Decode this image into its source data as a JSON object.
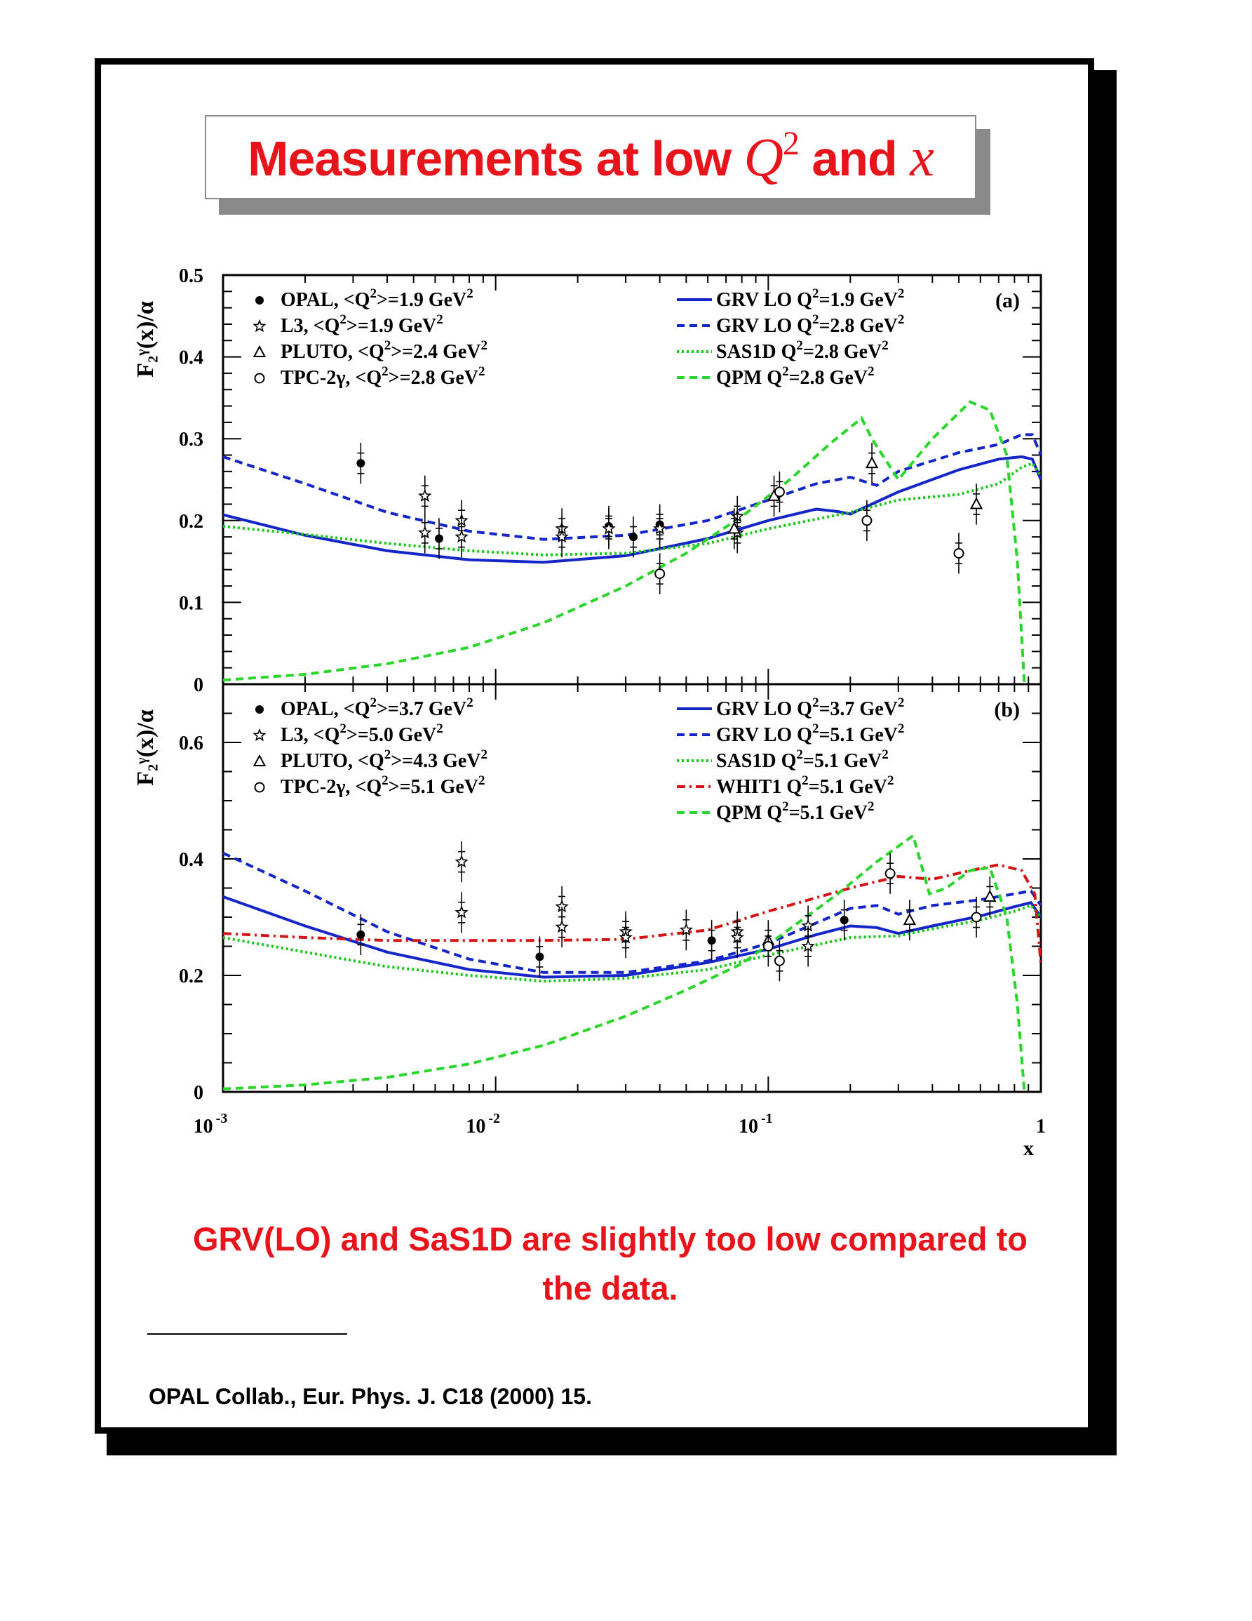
{
  "title": {
    "prefix": "Measurements at low ",
    "q_symbol": "Q",
    "q_exponent": "2",
    "middle": " and ",
    "x_symbol": "x"
  },
  "conclusion": {
    "line1": "GRV(LO) and SaS1D are slightly too low compared to",
    "line2": "the data."
  },
  "reference": "OPAL Collab., Eur. Phys. J. C18 (2000) 15.",
  "colors": {
    "title_red": "#e8141c",
    "grv_blue": "#1426c8",
    "sas_green": "#14c814",
    "qpm_green": "#2ad62a",
    "whit_red": "#d21414"
  },
  "chart_data": [
    {
      "type": "scatter",
      "panel_label": "(a)",
      "x_scale": "log",
      "xlim": [
        0.001,
        1
      ],
      "ylim": [
        0,
        0.5
      ],
      "y_ticks": [
        "0",
        "0.1",
        "0.2",
        "0.3",
        "0.4",
        "0.5"
      ],
      "ylabel": "F₂ᵞ(x)/α",
      "data_series": [
        {
          "name": "OPAL, <Q²>=1.9 GeV²",
          "marker": "filled-circle",
          "points": [
            [
              0.0032,
              0.27
            ],
            [
              0.0062,
              0.178
            ],
            [
              0.026,
              0.193
            ],
            [
              0.032,
              0.18
            ],
            [
              0.04,
              0.195
            ]
          ]
        },
        {
          "name": "L3, <Q²>=1.9 GeV²",
          "marker": "star",
          "points": [
            [
              0.0055,
              0.23
            ],
            [
              0.0055,
              0.185
            ],
            [
              0.0075,
              0.2
            ],
            [
              0.0075,
              0.18
            ],
            [
              0.0175,
              0.19
            ],
            [
              0.0175,
              0.18
            ],
            [
              0.026,
              0.19
            ],
            [
              0.04,
              0.19
            ],
            [
              0.077,
              0.205
            ],
            [
              0.077,
              0.185
            ]
          ]
        },
        {
          "name": "PLUTO, <Q²>=2.4 GeV²",
          "marker": "open-triangle",
          "points": [
            [
              0.075,
              0.19
            ],
            [
              0.105,
              0.23
            ],
            [
              0.24,
              0.27
            ],
            [
              0.58,
              0.22
            ]
          ]
        },
        {
          "name": "TPC-2γ, <Q²>=2.8 GeV²",
          "marker": "open-circle",
          "points": [
            [
              0.04,
              0.135
            ],
            [
              0.11,
              0.235
            ],
            [
              0.23,
              0.2
            ],
            [
              0.5,
              0.16
            ]
          ]
        }
      ],
      "curves": [
        {
          "name": "GRV LO Q²=1.9 GeV²",
          "style": "solid-blue",
          "points": [
            [
              0.001,
              0.207
            ],
            [
              0.002,
              0.182
            ],
            [
              0.004,
              0.163
            ],
            [
              0.008,
              0.152
            ],
            [
              0.015,
              0.149
            ],
            [
              0.03,
              0.157
            ],
            [
              0.06,
              0.178
            ],
            [
              0.1,
              0.2
            ],
            [
              0.15,
              0.214
            ],
            [
              0.18,
              0.211
            ],
            [
              0.2,
              0.208
            ],
            [
              0.3,
              0.235
            ],
            [
              0.5,
              0.262
            ],
            [
              0.7,
              0.275
            ],
            [
              0.85,
              0.278
            ],
            [
              0.93,
              0.275
            ],
            [
              1.0,
              0.25
            ]
          ]
        },
        {
          "name": "GRV LO Q²=2.8 GeV²",
          "style": "dashed-blue",
          "points": [
            [
              0.001,
              0.278
            ],
            [
              0.002,
              0.245
            ],
            [
              0.004,
              0.21
            ],
            [
              0.008,
              0.187
            ],
            [
              0.015,
              0.177
            ],
            [
              0.03,
              0.182
            ],
            [
              0.06,
              0.2
            ],
            [
              0.1,
              0.225
            ],
            [
              0.15,
              0.245
            ],
            [
              0.2,
              0.253
            ],
            [
              0.25,
              0.243
            ],
            [
              0.3,
              0.26
            ],
            [
              0.5,
              0.283
            ],
            [
              0.7,
              0.293
            ],
            [
              0.85,
              0.305
            ],
            [
              0.93,
              0.305
            ],
            [
              1.0,
              0.28
            ]
          ]
        },
        {
          "name": "SAS1D Q²=2.8 GeV²",
          "style": "dotted-green",
          "points": [
            [
              0.001,
              0.193
            ],
            [
              0.002,
              0.183
            ],
            [
              0.004,
              0.172
            ],
            [
              0.008,
              0.163
            ],
            [
              0.015,
              0.158
            ],
            [
              0.03,
              0.16
            ],
            [
              0.06,
              0.172
            ],
            [
              0.1,
              0.19
            ],
            [
              0.2,
              0.21
            ],
            [
              0.3,
              0.225
            ],
            [
              0.5,
              0.232
            ],
            [
              0.7,
              0.245
            ],
            [
              0.85,
              0.265
            ],
            [
              0.93,
              0.27
            ],
            [
              1.0,
              0.255
            ]
          ]
        },
        {
          "name": "QPM Q²=2.8 GeV²",
          "style": "dashed-green",
          "points": [
            [
              0.001,
              0.005
            ],
            [
              0.002,
              0.012
            ],
            [
              0.004,
              0.025
            ],
            [
              0.008,
              0.045
            ],
            [
              0.015,
              0.075
            ],
            [
              0.03,
              0.12
            ],
            [
              0.05,
              0.16
            ],
            [
              0.08,
              0.205
            ],
            [
              0.12,
              0.25
            ],
            [
              0.17,
              0.295
            ],
            [
              0.22,
              0.325
            ],
            [
              0.24,
              0.3
            ],
            [
              0.3,
              0.25
            ],
            [
              0.4,
              0.3
            ],
            [
              0.55,
              0.345
            ],
            [
              0.65,
              0.335
            ],
            [
              0.75,
              0.28
            ],
            [
              0.82,
              0.15
            ],
            [
              0.87,
              0.0
            ]
          ]
        }
      ],
      "legend_left": [
        "OPAL, <Q²>=1.9 GeV²",
        "L3, <Q²>=1.9 GeV²",
        "PLUTO, <Q²>=2.4 GeV²",
        "TPC-2γ, <Q²>=2.8 GeV²"
      ],
      "legend_right": [
        "GRV LO Q²=1.9 GeV²",
        "GRV LO Q²=2.8 GeV²",
        "SAS1D Q²=2.8 GeV²",
        "QPM Q²=2.8 GeV²"
      ]
    },
    {
      "type": "scatter",
      "panel_label": "(b)",
      "x_scale": "log",
      "xlim": [
        0.001,
        1
      ],
      "ylim": [
        0,
        0.7
      ],
      "y_ticks": [
        "0",
        "0.2",
        "0.4",
        "0.6"
      ],
      "x_ticks": [
        "10 -3",
        "10 -2",
        "10 -1",
        "1"
      ],
      "xlabel": "x",
      "ylabel": "F₂ᵞ(x)/α",
      "data_series": [
        {
          "name": "OPAL, <Q²>=3.7 GeV²",
          "marker": "filled-circle",
          "points": [
            [
              0.0032,
              0.27
            ],
            [
              0.0145,
              0.232
            ],
            [
              0.062,
              0.26
            ],
            [
              0.19,
              0.295
            ]
          ]
        },
        {
          "name": "L3, <Q²>=5.0 GeV²",
          "marker": "star",
          "points": [
            [
              0.0075,
              0.395
            ],
            [
              0.0075,
              0.308
            ],
            [
              0.0175,
              0.318
            ],
            [
              0.0175,
              0.283
            ],
            [
              0.03,
              0.275
            ],
            [
              0.03,
              0.265
            ],
            [
              0.05,
              0.278
            ],
            [
              0.077,
              0.275
            ],
            [
              0.077,
              0.265
            ],
            [
              0.14,
              0.285
            ],
            [
              0.14,
              0.25
            ]
          ]
        },
        {
          "name": "PLUTO, <Q²>=4.3 GeV²",
          "marker": "open-triangle",
          "points": [
            [
              0.1,
              0.26
            ],
            [
              0.33,
              0.295
            ],
            [
              0.65,
              0.335
            ]
          ]
        },
        {
          "name": "TPC-2γ, <Q²>=5.1 GeV²",
          "marker": "open-circle",
          "points": [
            [
              0.1,
              0.25
            ],
            [
              0.11,
              0.225
            ],
            [
              0.28,
              0.375
            ],
            [
              0.58,
              0.3
            ]
          ]
        }
      ],
      "curves": [
        {
          "name": "GRV LO Q²=3.7 GeV²",
          "style": "solid-blue",
          "points": [
            [
              0.001,
              0.335
            ],
            [
              0.002,
              0.285
            ],
            [
              0.004,
              0.24
            ],
            [
              0.008,
              0.21
            ],
            [
              0.015,
              0.197
            ],
            [
              0.03,
              0.2
            ],
            [
              0.06,
              0.222
            ],
            [
              0.1,
              0.245
            ],
            [
              0.15,
              0.27
            ],
            [
              0.2,
              0.285
            ],
            [
              0.25,
              0.282
            ],
            [
              0.3,
              0.272
            ],
            [
              0.4,
              0.285
            ],
            [
              0.6,
              0.302
            ],
            [
              0.8,
              0.318
            ],
            [
              0.92,
              0.325
            ],
            [
              1.0,
              0.3
            ]
          ]
        },
        {
          "name": "GRV LO Q²=5.1 GeV²",
          "style": "dashed-blue",
          "points": [
            [
              0.001,
              0.41
            ],
            [
              0.002,
              0.345
            ],
            [
              0.004,
              0.275
            ],
            [
              0.008,
              0.228
            ],
            [
              0.015,
              0.205
            ],
            [
              0.03,
              0.205
            ],
            [
              0.06,
              0.225
            ],
            [
              0.1,
              0.255
            ],
            [
              0.15,
              0.29
            ],
            [
              0.2,
              0.315
            ],
            [
              0.25,
              0.32
            ],
            [
              0.3,
              0.305
            ],
            [
              0.4,
              0.32
            ],
            [
              0.6,
              0.33
            ],
            [
              0.8,
              0.34
            ],
            [
              0.92,
              0.345
            ],
            [
              1.0,
              0.32
            ]
          ]
        },
        {
          "name": "SAS1D Q²=5.1 GeV²",
          "style": "dotted-green",
          "points": [
            [
              0.001,
              0.265
            ],
            [
              0.002,
              0.24
            ],
            [
              0.004,
              0.215
            ],
            [
              0.008,
              0.2
            ],
            [
              0.015,
              0.19
            ],
            [
              0.03,
              0.195
            ],
            [
              0.06,
              0.21
            ],
            [
              0.1,
              0.235
            ],
            [
              0.2,
              0.265
            ],
            [
              0.3,
              0.268
            ],
            [
              0.4,
              0.28
            ],
            [
              0.6,
              0.295
            ],
            [
              0.8,
              0.31
            ],
            [
              0.92,
              0.32
            ],
            [
              1.0,
              0.3
            ]
          ]
        },
        {
          "name": "WHIT1 Q²=5.1 GeV²",
          "style": "dashdot-red",
          "points": [
            [
              0.001,
              0.272
            ],
            [
              0.002,
              0.265
            ],
            [
              0.004,
              0.26
            ],
            [
              0.008,
              0.26
            ],
            [
              0.015,
              0.26
            ],
            [
              0.03,
              0.262
            ],
            [
              0.06,
              0.278
            ],
            [
              0.1,
              0.31
            ],
            [
              0.2,
              0.35
            ],
            [
              0.3,
              0.37
            ],
            [
              0.4,
              0.365
            ],
            [
              0.55,
              0.38
            ],
            [
              0.7,
              0.39
            ],
            [
              0.85,
              0.38
            ],
            [
              0.95,
              0.34
            ],
            [
              1.0,
              0.22
            ]
          ]
        },
        {
          "name": "QPM Q²=5.1 GeV²",
          "style": "dashed-green",
          "points": [
            [
              0.001,
              0.005
            ],
            [
              0.002,
              0.012
            ],
            [
              0.004,
              0.025
            ],
            [
              0.008,
              0.048
            ],
            [
              0.015,
              0.08
            ],
            [
              0.03,
              0.13
            ],
            [
              0.05,
              0.175
            ],
            [
              0.08,
              0.22
            ],
            [
              0.12,
              0.28
            ],
            [
              0.18,
              0.34
            ],
            [
              0.25,
              0.395
            ],
            [
              0.34,
              0.44
            ],
            [
              0.39,
              0.34
            ],
            [
              0.45,
              0.35
            ],
            [
              0.55,
              0.38
            ],
            [
              0.65,
              0.385
            ],
            [
              0.75,
              0.3
            ],
            [
              0.82,
              0.15
            ],
            [
              0.87,
              0.0
            ]
          ]
        }
      ],
      "legend_left": [
        "OPAL, <Q²>=3.7 GeV²",
        "L3, <Q²>=5.0 GeV²",
        "PLUTO, <Q²>=4.3 GeV²",
        "TPC-2γ, <Q²>=5.1 GeV²"
      ],
      "legend_right": [
        "GRV LO Q²=3.7 GeV²",
        "GRV LO Q²=5.1 GeV²",
        "SAS1D Q²=5.1 GeV²",
        "WHIT1 Q²=5.1 GeV²",
        "QPM Q²=5.1 GeV²"
      ]
    }
  ]
}
